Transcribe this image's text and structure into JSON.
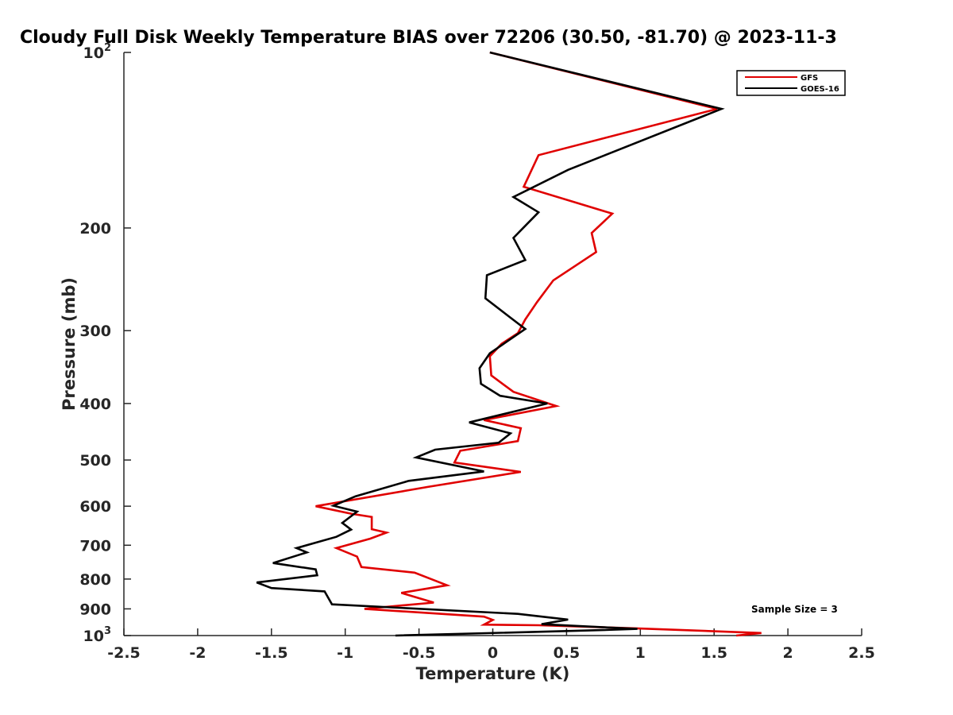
{
  "chart_data": {
    "type": "line",
    "title": "Cloudy Full Disk Weekly Temperature BIAS over 72206 (30.50, -81.70) @ 2023-11-3",
    "xlabel": "Temperature (K)",
    "ylabel": "Pressure (mb)",
    "xlim": [
      -2.5,
      2.5
    ],
    "ylim": [
      100,
      1000
    ],
    "y_scale": "log",
    "y_reversed": true,
    "x_ticks": [
      -2.5,
      -2,
      -1.5,
      -1,
      -0.5,
      0,
      0.5,
      1,
      1.5,
      2,
      2.5
    ],
    "x_tick_labels": [
      "-2.5",
      "-2",
      "-1.5",
      "-1",
      "-0.5",
      "0",
      "0.5",
      "1",
      "1.5",
      "2",
      "2.5"
    ],
    "y_ticks": [
      100,
      200,
      300,
      400,
      500,
      600,
      700,
      800,
      900,
      1000
    ],
    "y_tick_labels": [
      {
        "base": "10",
        "exp": "2"
      },
      {
        "base": "200"
      },
      {
        "base": "300"
      },
      {
        "base": "400"
      },
      {
        "base": "500"
      },
      {
        "base": "600"
      },
      {
        "base": "700"
      },
      {
        "base": "800"
      },
      {
        "base": "900"
      },
      {
        "base": "10",
        "exp": "3"
      }
    ],
    "grid": false,
    "legend_position": "top-right",
    "annotation": "Sample Size = 3",
    "series": [
      {
        "name": "GFS",
        "color": "#e00000",
        "points": [
          [
            -0.02,
            100
          ],
          [
            1.52,
            125
          ],
          [
            0.31,
            150
          ],
          [
            0.21,
            170
          ],
          [
            0.81,
            189
          ],
          [
            0.67,
            204
          ],
          [
            0.7,
            220
          ],
          [
            0.41,
            246
          ],
          [
            0.3,
            268
          ],
          [
            0.22,
            287
          ],
          [
            0.17,
            303
          ],
          [
            0.06,
            316
          ],
          [
            -0.02,
            332
          ],
          [
            -0.01,
            358
          ],
          [
            0.14,
            382
          ],
          [
            0.43,
            404
          ],
          [
            -0.06,
            427
          ],
          [
            0.19,
            441
          ],
          [
            0.17,
            464
          ],
          [
            -0.22,
            482
          ],
          [
            -0.26,
            505
          ],
          [
            0.19,
            524
          ],
          [
            -0.44,
            556
          ],
          [
            -1.2,
            600
          ],
          [
            -0.96,
            618
          ],
          [
            -0.82,
            626
          ],
          [
            -0.82,
            657
          ],
          [
            -0.72,
            666
          ],
          [
            -0.83,
            682
          ],
          [
            -1.06,
            708
          ],
          [
            -0.92,
            732
          ],
          [
            -0.89,
            763
          ],
          [
            -0.53,
            780
          ],
          [
            -0.31,
            820
          ],
          [
            -0.62,
            845
          ],
          [
            -0.4,
            878
          ],
          [
            -0.87,
            900
          ],
          [
            -0.06,
            928
          ],
          [
            0.0,
            940
          ],
          [
            -0.06,
            958
          ],
          [
            0.31,
            960
          ],
          [
            0.97,
            972
          ],
          [
            1.82,
            990
          ],
          [
            1.65,
            1000
          ]
        ]
      },
      {
        "name": "GOES-16",
        "color": "#000000",
        "points": [
          [
            -0.02,
            100
          ],
          [
            1.55,
            125
          ],
          [
            0.51,
            159
          ],
          [
            0.14,
            177
          ],
          [
            0.31,
            188
          ],
          [
            0.14,
            208
          ],
          [
            0.22,
            227
          ],
          [
            -0.04,
            241
          ],
          [
            -0.05,
            264
          ],
          [
            0.12,
            285
          ],
          [
            0.22,
            298
          ],
          [
            -0.02,
            328
          ],
          [
            -0.09,
            348
          ],
          [
            -0.08,
            370
          ],
          [
            0.05,
            388
          ],
          [
            0.37,
            400
          ],
          [
            -0.16,
            431
          ],
          [
            0.12,
            450
          ],
          [
            0.04,
            467
          ],
          [
            -0.39,
            480
          ],
          [
            -0.52,
            495
          ],
          [
            -0.06,
            523
          ],
          [
            -0.57,
            543
          ],
          [
            -0.93,
            577
          ],
          [
            -1.08,
            599
          ],
          [
            -0.92,
            613
          ],
          [
            -1.02,
            641
          ],
          [
            -0.96,
            658
          ],
          [
            -1.06,
            677
          ],
          [
            -1.33,
            708
          ],
          [
            -1.26,
            720
          ],
          [
            -1.49,
            751
          ],
          [
            -1.2,
            770
          ],
          [
            -1.19,
            788
          ],
          [
            -1.6,
            811
          ],
          [
            -1.5,
            829
          ],
          [
            -1.14,
            840
          ],
          [
            -1.09,
            884
          ],
          [
            0.17,
            918
          ],
          [
            0.51,
            939
          ],
          [
            0.33,
            956
          ],
          [
            0.98,
            974
          ],
          [
            0.65,
            980
          ],
          [
            -0.66,
            1000
          ]
        ]
      }
    ]
  }
}
